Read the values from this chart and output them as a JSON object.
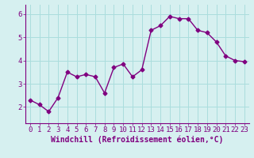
{
  "x": [
    0,
    1,
    2,
    3,
    4,
    5,
    6,
    7,
    8,
    9,
    10,
    11,
    12,
    13,
    14,
    15,
    16,
    17,
    18,
    19,
    20,
    21,
    22,
    23
  ],
  "y": [
    2.3,
    2.1,
    1.8,
    2.4,
    3.5,
    3.3,
    3.4,
    3.3,
    2.6,
    3.7,
    3.85,
    3.3,
    3.6,
    5.3,
    5.5,
    5.9,
    5.8,
    5.8,
    5.3,
    5.2,
    4.8,
    4.2,
    4.0,
    3.95
  ],
  "line_color": "#800080",
  "marker": "D",
  "marker_size": 2.5,
  "bg_color": "#d6f0f0",
  "grid_color": "#aadddd",
  "xlabel": "Windchill (Refroidissement éolien,°C)",
  "xlabel_fontsize": 7,
  "xlim": [
    -0.5,
    23.5
  ],
  "ylim": [
    1.3,
    6.4
  ],
  "yticks": [
    2,
    3,
    4,
    5,
    6
  ],
  "xticks": [
    0,
    1,
    2,
    3,
    4,
    5,
    6,
    7,
    8,
    9,
    10,
    11,
    12,
    13,
    14,
    15,
    16,
    17,
    18,
    19,
    20,
    21,
    22,
    23
  ],
  "tick_fontsize": 6.5
}
